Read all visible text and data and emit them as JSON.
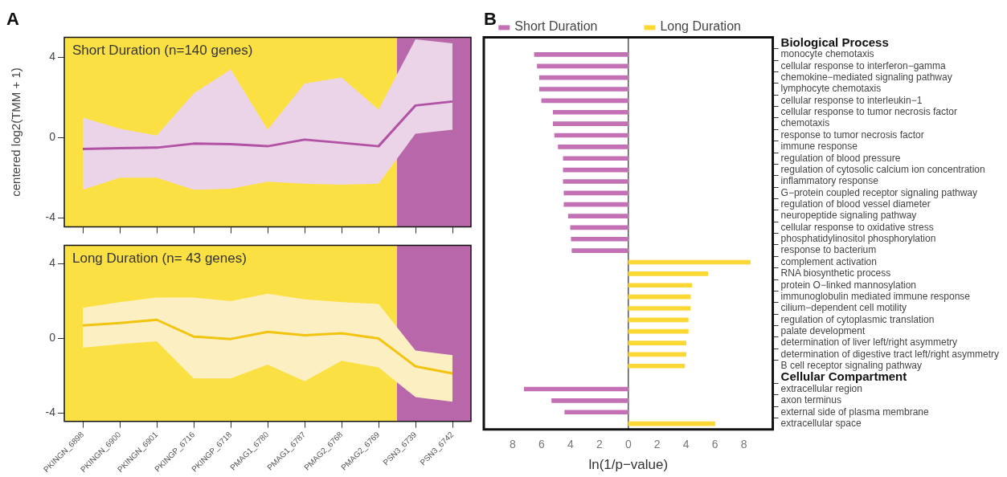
{
  "chart_data": [
    {
      "type": "line",
      "title": "A",
      "ylabel": "centered log2(TMM + 1)",
      "categories": [
        "PKINGN_6898",
        "PKINGN_6900",
        "PKINGN_6901",
        "PKINGP_6716",
        "PKINGP_6718",
        "PMAG1_6780",
        "PMAG1_6787",
        "PMAG2_6768",
        "PMAG2_6769",
        "PSN3_6739",
        "PSN3_6742"
      ],
      "series": [
        {
          "color": "#b152a4",
          "values": [
            -0.57,
            -0.53,
            -0.5,
            -0.3,
            -0.33,
            -0.43,
            -0.1,
            -0.26,
            -0.43,
            1.6,
            1.8
          ],
          "lower": [
            -2.6,
            -2.0,
            -2.0,
            -2.6,
            -2.55,
            -2.2,
            -2.3,
            -2.35,
            -2.3,
            0.2,
            0.4
          ],
          "upper": [
            1.0,
            0.45,
            0.1,
            2.2,
            3.4,
            0.4,
            2.7,
            3.0,
            1.4,
            4.9,
            4.7
          ]
        }
      ],
      "ylim": [
        -4.45,
        5
      ],
      "yticks": [
        -4,
        0,
        4
      ],
      "tick_labels": "y",
      "bands": [
        {
          "axis": "x",
          "from": "PKINGN_6898",
          "to": "PMAG2_6769",
          "color": "#fbe044"
        },
        {
          "axis": "x",
          "from": "PSN3_6739",
          "to": "PSN3_6742",
          "color": "#b868aa"
        }
      ],
      "annotations": [
        "Short Duration (n=140 genes)"
      ]
    },
    {
      "type": "line",
      "categories": [
        "PKINGN_6898",
        "PKINGN_6900",
        "PKINGN_6901",
        "PKINGP_6716",
        "PKINGP_6718",
        "PMAG1_6780",
        "PMAG1_6787",
        "PMAG2_6768",
        "PMAG2_6769",
        "PSN3_6739",
        "PSN3_6742"
      ],
      "series": [
        {
          "color": "#f2c40f",
          "values": [
            0.7,
            0.83,
            1.0,
            0.1,
            -0.03,
            0.35,
            0.17,
            0.28,
            0,
            -1.5,
            -1.88
          ],
          "lower": [
            -0.5,
            -0.3,
            -0.15,
            -2.15,
            -2.15,
            -1.4,
            -2.3,
            -1.2,
            -1.55,
            -3.15,
            -3.4
          ],
          "upper": [
            1.65,
            1.95,
            2.2,
            2.2,
            2.0,
            2.4,
            2.1,
            1.95,
            1.85,
            -0.65,
            -0.9
          ]
        }
      ],
      "ylim": [
        -4.45,
        5
      ],
      "yticks": [
        -4,
        0,
        4
      ],
      "bands": [
        {
          "axis": "x",
          "from": "PKINGN_6898",
          "to": "PMAG2_6769",
          "color": "#fbe044"
        },
        {
          "axis": "x",
          "from": "PSN3_6739",
          "to": "PSN3_6742",
          "color": "#b868aa"
        }
      ],
      "annotations": [
        "Long Duration (n= 43 genes)"
      ]
    },
    {
      "type": "bar",
      "orientation": "horizontal",
      "title": "B",
      "xlabel": "ln(1/p−value)",
      "categories": [
        "Biological Process",
        "monocyte chemotaxis",
        "cellular response to interferon−gamma",
        "chemokine−mediated signaling pathway",
        "lymphocyte chemotaxis",
        "cellular response to interleukin−1",
        "cellular response to tumor necrosis factor",
        "chemotaxis",
        "response to tumor necrosis factor",
        "immune response",
        "regulation of blood pressure",
        "regulation of cytosolic calcium ion concentration",
        "inflammatory response",
        "G−protein coupled receptor signaling pathway",
        "regulation of blood vessel diameter",
        "neuropeptide signaling pathway",
        "cellular response to oxidative stress",
        "phosphatidylinositol phosphorylation",
        "response to bacterium",
        "complement activation",
        "RNA biosynthetic process",
        "protein O−linked mannosylation",
        "immunoglobulin mediated immune response",
        "cilium−dependent cell motility",
        "regulation of cytoplasmic translation",
        "palate development",
        "determination of liver left/right asymmetry",
        "determination of digestive tract left/right asymmetry",
        "B cell receptor signaling pathway",
        "Cellular Compartment",
        "extracellular region",
        "axon terminus",
        "external side of plasma membrane",
        "extracellular space"
      ],
      "series": [
        {
          "name": "Short Duration",
          "color": "#c370b4",
          "values": [
            null,
            -6.5,
            -6.3,
            -6.15,
            -6.15,
            -6.0,
            -5.2,
            -5.2,
            -5.1,
            -4.85,
            -4.5,
            -4.5,
            -4.5,
            -4.45,
            -4.45,
            -4.15,
            -4.0,
            -3.95,
            -3.9,
            null,
            null,
            null,
            null,
            null,
            null,
            null,
            null,
            null,
            null,
            null,
            -7.2,
            -5.3,
            -4.4,
            null
          ]
        },
        {
          "name": "Long Duration",
          "color": "#fdd835",
          "values": [
            null,
            null,
            null,
            null,
            null,
            null,
            null,
            null,
            null,
            null,
            null,
            null,
            null,
            null,
            null,
            null,
            null,
            null,
            null,
            8.45,
            5.5,
            4.4,
            4.3,
            4.3,
            4.15,
            4.15,
            4.0,
            4.0,
            3.9,
            null,
            null,
            null,
            null,
            6.0
          ]
        }
      ],
      "xlim": [
        -10,
        10
      ],
      "xticks": [
        {
          "value": -8,
          "label": "8"
        },
        {
          "value": -6,
          "label": "6"
        },
        {
          "value": -4,
          "label": "4"
        },
        {
          "value": -2,
          "label": "2"
        },
        0,
        2,
        4,
        6,
        8
      ],
      "legend": "top",
      "ref_lines": [
        {
          "axis": "x",
          "value": 0,
          "color": "#555555"
        }
      ]
    }
  ]
}
